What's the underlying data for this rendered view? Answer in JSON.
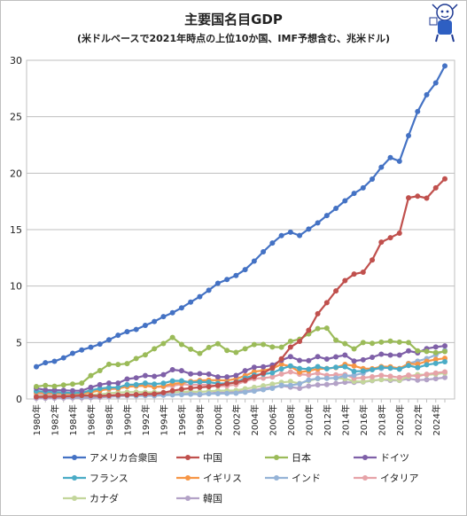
{
  "title": "主要国名目GDP",
  "subtitle": "(米ドルベースで2021年時点の上位10か国、IMF予想含む、兆米ドル)",
  "chart_data": {
    "type": "line",
    "title": "主要国名目GDP",
    "subtitle": "(米ドルベースで2021年時点の上位10か国、IMF予想含む、兆米ドル)",
    "xlabel": "",
    "ylabel": "",
    "ylim": [
      0,
      30
    ],
    "yticks": [
      "0",
      "5",
      "10",
      "15",
      "20",
      "25",
      "30"
    ],
    "xtick_labels": [
      "1980年",
      "1982年",
      "1984年",
      "1986年",
      "1988年",
      "1990年",
      "1992年",
      "1994年",
      "1996年",
      "1998年",
      "2000年",
      "2002年",
      "2004年",
      "2006年",
      "2008年",
      "2010年",
      "2012年",
      "2014年",
      "2016年",
      "2018年",
      "2020年",
      "2022年",
      "2024年"
    ],
    "grid": true,
    "legend_position": "bottom",
    "x": [
      1980,
      1981,
      1982,
      1983,
      1984,
      1985,
      1986,
      1987,
      1988,
      1989,
      1990,
      1991,
      1992,
      1993,
      1994,
      1995,
      1996,
      1997,
      1998,
      1999,
      2000,
      2001,
      2002,
      2003,
      2004,
      2005,
      2006,
      2007,
      2008,
      2009,
      2010,
      2011,
      2012,
      2013,
      2014,
      2015,
      2016,
      2017,
      2018,
      2019,
      2020,
      2021,
      2022,
      2023,
      2024,
      2025
    ],
    "series": [
      {
        "name": "アメリカ合衆国",
        "color": "#4472c4",
        "values": [
          2.86,
          3.21,
          3.34,
          3.64,
          4.04,
          4.34,
          4.58,
          4.86,
          5.24,
          5.64,
          5.96,
          6.16,
          6.52,
          6.86,
          7.29,
          7.64,
          8.07,
          8.58,
          9.06,
          9.63,
          10.25,
          10.58,
          10.94,
          11.46,
          12.21,
          13.04,
          13.81,
          14.47,
          14.77,
          14.48,
          15.05,
          15.6,
          16.25,
          16.88,
          17.55,
          18.21,
          18.7,
          19.48,
          20.53,
          21.38,
          21.06,
          23.32,
          25.46,
          26.95,
          28.0,
          29.5
        ]
      },
      {
        "name": "中国",
        "color": "#c0504d",
        "values": [
          0.19,
          0.2,
          0.21,
          0.23,
          0.26,
          0.31,
          0.3,
          0.27,
          0.31,
          0.35,
          0.36,
          0.38,
          0.43,
          0.44,
          0.56,
          0.73,
          0.86,
          0.96,
          1.03,
          1.09,
          1.21,
          1.34,
          1.47,
          1.66,
          1.96,
          2.29,
          2.75,
          3.55,
          4.59,
          5.1,
          6.09,
          7.55,
          8.53,
          9.57,
          10.48,
          11.06,
          11.23,
          12.31,
          13.89,
          14.28,
          14.69,
          17.82,
          17.96,
          17.79,
          18.7,
          19.5
        ]
      },
      {
        "name": "日本",
        "color": "#9bbb59",
        "values": [
          1.1,
          1.2,
          1.13,
          1.24,
          1.32,
          1.4,
          2.07,
          2.51,
          3.07,
          3.05,
          3.13,
          3.58,
          3.91,
          4.45,
          4.91,
          5.45,
          4.83,
          4.41,
          4.03,
          4.56,
          4.89,
          4.3,
          4.12,
          4.45,
          4.82,
          4.83,
          4.6,
          4.58,
          5.11,
          5.29,
          5.76,
          6.23,
          6.27,
          5.21,
          4.9,
          4.44,
          5.0,
          4.93,
          5.04,
          5.12,
          5.04,
          5.0,
          4.26,
          4.21,
          4.1,
          4.2
        ]
      },
      {
        "name": "ドイツ",
        "color": "#7f60a8",
        "values": [
          0.95,
          0.8,
          0.78,
          0.77,
          0.73,
          0.73,
          1.03,
          1.27,
          1.4,
          1.4,
          1.77,
          1.87,
          2.07,
          2.0,
          2.15,
          2.59,
          2.5,
          2.22,
          2.24,
          2.2,
          1.95,
          1.95,
          2.08,
          2.5,
          2.81,
          2.85,
          3.0,
          3.43,
          3.75,
          3.42,
          3.4,
          3.75,
          3.53,
          3.73,
          3.89,
          3.36,
          3.47,
          3.69,
          3.97,
          3.89,
          3.89,
          4.26,
          4.08,
          4.46,
          4.6,
          4.7
        ]
      },
      {
        "name": "フランス",
        "color": "#4bacc6",
        "values": [
          0.7,
          0.64,
          0.6,
          0.57,
          0.53,
          0.55,
          0.77,
          0.93,
          1.01,
          1.02,
          1.27,
          1.27,
          1.4,
          1.32,
          1.39,
          1.6,
          1.61,
          1.46,
          1.51,
          1.49,
          1.37,
          1.38,
          1.5,
          1.84,
          2.12,
          2.2,
          2.32,
          2.66,
          2.93,
          2.7,
          2.64,
          2.87,
          2.68,
          2.81,
          2.86,
          2.44,
          2.47,
          2.59,
          2.79,
          2.73,
          2.64,
          2.96,
          2.78,
          3.03,
          3.15,
          3.3
        ]
      },
      {
        "name": "イギリス",
        "color": "#f79646",
        "values": [
          0.6,
          0.54,
          0.52,
          0.49,
          0.46,
          0.49,
          0.6,
          0.75,
          0.91,
          0.93,
          1.09,
          1.14,
          1.18,
          1.06,
          1.14,
          1.34,
          1.41,
          1.55,
          1.64,
          1.67,
          1.66,
          1.64,
          1.78,
          2.06,
          2.42,
          2.52,
          2.69,
          3.07,
          2.89,
          2.38,
          2.48,
          2.66,
          2.7,
          2.78,
          3.06,
          2.93,
          2.69,
          2.68,
          2.87,
          2.85,
          2.7,
          3.12,
          3.08,
          3.34,
          3.5,
          3.6
        ]
      },
      {
        "name": "インド",
        "color": "#95b3d7",
        "values": [
          0.19,
          0.2,
          0.2,
          0.22,
          0.21,
          0.23,
          0.25,
          0.28,
          0.3,
          0.3,
          0.32,
          0.27,
          0.29,
          0.28,
          0.33,
          0.36,
          0.39,
          0.42,
          0.42,
          0.46,
          0.47,
          0.49,
          0.51,
          0.6,
          0.7,
          0.82,
          0.94,
          1.22,
          1.2,
          1.34,
          1.68,
          1.82,
          1.83,
          1.86,
          2.04,
          2.1,
          2.29,
          2.65,
          2.7,
          2.83,
          2.67,
          3.15,
          3.35,
          3.57,
          3.9,
          4.3
        ]
      },
      {
        "name": "イタリア",
        "color": "#e6a3a8",
        "values": [
          0.48,
          0.43,
          0.43,
          0.44,
          0.43,
          0.45,
          0.62,
          0.78,
          0.86,
          0.91,
          1.18,
          1.24,
          1.32,
          1.06,
          1.1,
          1.17,
          1.31,
          1.24,
          1.27,
          1.25,
          1.14,
          1.16,
          1.27,
          1.57,
          1.8,
          1.85,
          1.94,
          2.21,
          2.4,
          2.19,
          2.13,
          2.29,
          2.09,
          2.14,
          2.16,
          1.84,
          1.88,
          1.96,
          2.09,
          2.01,
          1.9,
          2.11,
          2.01,
          2.19,
          2.3,
          2.4
        ]
      },
      {
        "name": "カナダ",
        "color": "#c3d69b",
        "values": [
          0.27,
          0.3,
          0.31,
          0.34,
          0.35,
          0.36,
          0.37,
          0.42,
          0.5,
          0.57,
          0.6,
          0.61,
          0.59,
          0.58,
          0.58,
          0.6,
          0.63,
          0.66,
          0.63,
          0.68,
          0.74,
          0.74,
          0.76,
          0.9,
          1.03,
          1.17,
          1.32,
          1.47,
          1.55,
          1.37,
          1.62,
          1.79,
          1.83,
          1.85,
          1.8,
          1.56,
          1.53,
          1.65,
          1.72,
          1.74,
          1.65,
          2.0,
          2.16,
          2.14,
          2.2,
          2.3
        ]
      },
      {
        "name": "韓国",
        "color": "#b3a2c7",
        "values": [
          0.07,
          0.07,
          0.08,
          0.09,
          0.1,
          0.1,
          0.12,
          0.15,
          0.2,
          0.25,
          0.28,
          0.33,
          0.35,
          0.39,
          0.46,
          0.57,
          0.6,
          0.56,
          0.38,
          0.49,
          0.58,
          0.55,
          0.63,
          0.7,
          0.79,
          0.93,
          1.05,
          1.17,
          1.05,
          0.94,
          1.14,
          1.25,
          1.28,
          1.37,
          1.48,
          1.47,
          1.5,
          1.62,
          1.72,
          1.65,
          1.64,
          1.81,
          1.67,
          1.71,
          1.8,
          1.9
        ]
      }
    ]
  }
}
